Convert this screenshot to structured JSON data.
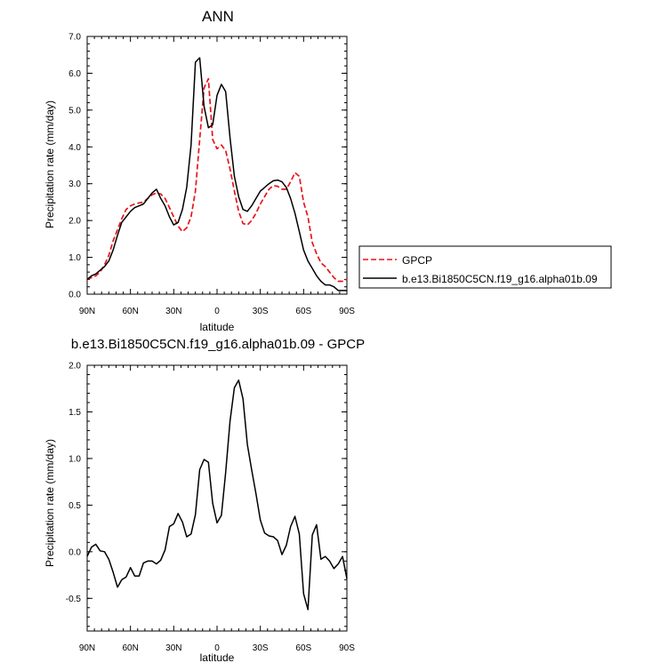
{
  "panels": [
    {
      "title": "ANN",
      "xlabel": "latitude",
      "ylabel": "Precipitation rate (mm/day)",
      "y_ticks": [
        "0.0",
        "1.0",
        "2.0",
        "3.0",
        "4.0",
        "5.0",
        "6.0",
        "7.0"
      ],
      "x_ticks": [
        "90N",
        "60N",
        "30N",
        "0",
        "30S",
        "60S",
        "90S"
      ],
      "legend": [
        "GPCP",
        "b.e13.Bi1850C5CN.f19_g16.alpha01b.09"
      ]
    },
    {
      "title": "b.e13.Bi1850C5CN.f19_g16.alpha01b.09 - GPCP",
      "xlabel": "latitude",
      "ylabel": "Precipitation rate (mm/day)",
      "y_ticks": [
        "-0.5",
        "0.0",
        "0.5",
        "1.0",
        "1.5",
        "2.0"
      ],
      "x_ticks": [
        "90N",
        "60N",
        "30N",
        "0",
        "30S",
        "60S",
        "90S"
      ]
    }
  ],
  "colors": {
    "gpcp": "#e8141a",
    "model": "#000000"
  },
  "chart_data": [
    {
      "type": "line",
      "title": "ANN",
      "xlabel": "latitude",
      "ylabel": "Precipitation rate (mm/day)",
      "x_direction": "90N to 90S",
      "ylim": [
        0,
        7
      ],
      "legend_position": "right",
      "series": [
        {
          "name": "GPCP",
          "style": "dashed",
          "color": "#e8141a",
          "x": [
            -90,
            -87,
            -84,
            -81,
            -78,
            -75,
            -72,
            -69,
            -66,
            -63,
            -60,
            -57,
            -54,
            -51,
            -48,
            -45,
            -42,
            -39,
            -36,
            -33,
            -30,
            -27,
            -24,
            -21,
            -18,
            -15,
            -12,
            -9,
            -6,
            -3,
            0,
            3,
            6,
            9,
            12,
            15,
            18,
            21,
            24,
            27,
            30,
            33,
            36,
            39,
            42,
            45,
            48,
            51,
            54,
            57,
            60,
            63,
            66,
            69,
            72,
            75,
            78,
            81,
            84,
            87,
            90
          ],
          "y": [
            0.4,
            0.45,
            0.5,
            0.6,
            0.8,
            1.05,
            1.45,
            1.75,
            2.05,
            2.3,
            2.4,
            2.45,
            2.48,
            2.5,
            2.6,
            2.7,
            2.75,
            2.72,
            2.6,
            2.35,
            2.1,
            1.85,
            1.7,
            1.8,
            2.1,
            2.8,
            4.2,
            5.6,
            5.85,
            4.2,
            3.95,
            4.05,
            3.9,
            3.4,
            2.8,
            2.25,
            1.92,
            1.88,
            2.0,
            2.2,
            2.45,
            2.65,
            2.85,
            2.95,
            2.93,
            2.85,
            2.85,
            3.05,
            3.3,
            3.2,
            2.5,
            2.1,
            1.4,
            1.1,
            0.85,
            0.75,
            0.6,
            0.45,
            0.35,
            0.35,
            0.4
          ]
        },
        {
          "name": "b.e13.Bi1850C5CN.f19_g16.alpha01b.09",
          "style": "solid",
          "color": "#000000",
          "x": [
            -90,
            -87,
            -84,
            -81,
            -78,
            -75,
            -72,
            -69,
            -66,
            -63,
            -60,
            -57,
            -54,
            -51,
            -48,
            -45,
            -42,
            -39,
            -36,
            -33,
            -30,
            -27,
            -24,
            -21,
            -18,
            -15,
            -12,
            -9,
            -6,
            -3,
            0,
            3,
            6,
            9,
            12,
            15,
            18,
            21,
            24,
            27,
            30,
            33,
            36,
            39,
            42,
            45,
            48,
            51,
            54,
            57,
            60,
            63,
            66,
            69,
            72,
            75,
            78,
            81,
            84,
            87,
            90
          ],
          "y": [
            0.4,
            0.5,
            0.55,
            0.65,
            0.75,
            0.9,
            1.2,
            1.6,
            1.95,
            2.1,
            2.25,
            2.35,
            2.4,
            2.45,
            2.6,
            2.75,
            2.85,
            2.6,
            2.4,
            2.1,
            1.88,
            1.95,
            2.3,
            2.9,
            4.05,
            6.3,
            6.42,
            5.1,
            4.52,
            4.6,
            5.4,
            5.7,
            5.5,
            4.25,
            3.2,
            2.65,
            2.3,
            2.25,
            2.4,
            2.6,
            2.8,
            2.9,
            3.0,
            3.08,
            3.1,
            3.05,
            2.9,
            2.6,
            2.2,
            1.7,
            1.2,
            0.9,
            0.7,
            0.5,
            0.35,
            0.25,
            0.25,
            0.2,
            0.1,
            0.1,
            0.1
          ]
        }
      ]
    },
    {
      "type": "line",
      "title": "b.e13.Bi1850C5CN.f19_g16.alpha01b.09 - GPCP",
      "xlabel": "latitude",
      "ylabel": "Precipitation rate (mm/day)",
      "x_direction": "90N to 90S",
      "ylim": [
        -0.85,
        2.0
      ],
      "series": [
        {
          "style": "solid",
          "color": "#000000",
          "x": [
            -90,
            -87,
            -84,
            -81,
            -78,
            -75,
            -72,
            -69,
            -66,
            -63,
            -60,
            -57,
            -54,
            -51,
            -48,
            -45,
            -42,
            -39,
            -36,
            -33,
            -30,
            -27,
            -24,
            -21,
            -18,
            -15,
            -12,
            -9,
            -6,
            -3,
            0,
            3,
            6,
            9,
            12,
            15,
            18,
            21,
            24,
            27,
            30,
            33,
            36,
            39,
            42,
            45,
            48,
            51,
            54,
            57,
            60,
            63,
            66,
            69,
            72,
            75,
            78,
            81,
            84,
            87,
            90
          ],
          "y": [
            -0.05,
            0.05,
            0.08,
            0.01,
            0.0,
            -0.08,
            -0.22,
            -0.38,
            -0.3,
            -0.27,
            -0.17,
            -0.26,
            -0.26,
            -0.12,
            -0.1,
            -0.1,
            -0.13,
            -0.09,
            0.02,
            0.27,
            0.3,
            0.41,
            0.32,
            0.16,
            0.19,
            0.4,
            0.88,
            0.99,
            0.96,
            0.52,
            0.31,
            0.39,
            0.85,
            1.4,
            1.76,
            1.84,
            1.64,
            1.15,
            0.88,
            0.62,
            0.34,
            0.2,
            0.17,
            0.16,
            0.12,
            -0.03,
            0.07,
            0.27,
            0.38,
            0.19,
            -0.45,
            -0.62,
            0.18,
            0.29,
            -0.08,
            -0.05,
            -0.1,
            -0.18,
            -0.13,
            -0.05,
            -0.29
          ]
        }
      ]
    }
  ]
}
